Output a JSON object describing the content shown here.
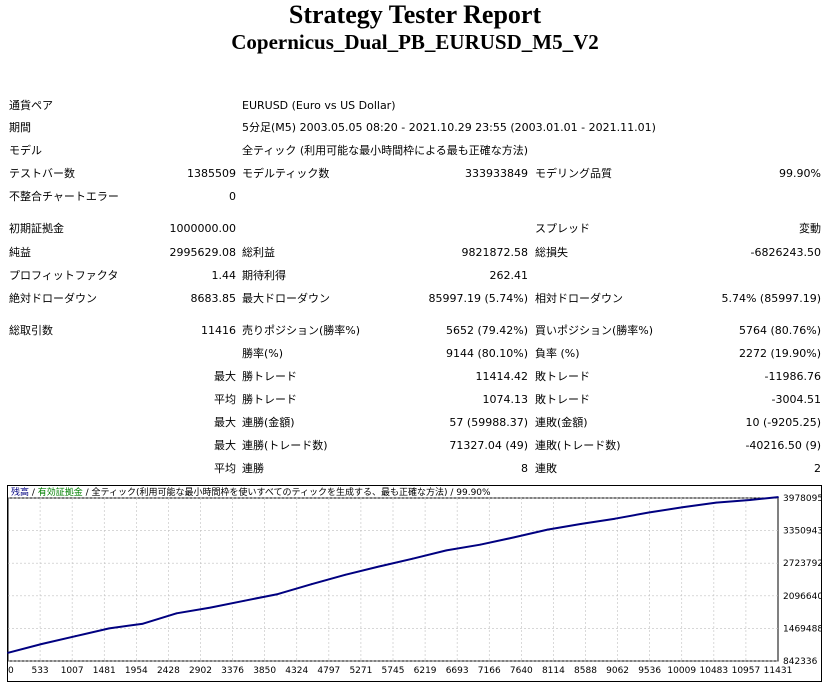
{
  "report": {
    "title": "Strategy Tester Report",
    "subtitle": "Copernicus_Dual_PB_EURUSD_M5_V2"
  },
  "summary": {
    "symbol_label": "通貨ペア",
    "symbol_value": "EURUSD (Euro vs US Dollar)",
    "period_label": "期間",
    "period_value": "5分足(M5) 2003.05.05 08:20 - 2021.10.29 23:55 (2003.01.01 - 2021.11.01)",
    "model_label": "モデル",
    "model_value": "全ティック (利用可能な最小時間枠による最も正確な方法)",
    "bars_label": "テストバー数",
    "bars_value": "1385509",
    "ticks_label": "モデルティック数",
    "ticks_value": "333933849",
    "quality_label": "モデリング品質",
    "quality_value": "99.90%",
    "mismatch_label": "不整合チャートエラー",
    "mismatch_value": "0"
  },
  "results": {
    "deposit_label": "初期証拠金",
    "deposit_value": "1000000.00",
    "spread_label": "スプレッド",
    "spread_value": "変動",
    "net_label": "純益",
    "net_value": "2995629.08",
    "gross_profit_label": "総利益",
    "gross_profit_value": "9821872.58",
    "gross_loss_label": "総損失",
    "gross_loss_value": "-6826243.50",
    "pf_label": "プロフィットファクタ",
    "pf_value": "1.44",
    "payoff_label": "期待利得",
    "payoff_value": "262.41",
    "abs_dd_label": "絶対ドローダウン",
    "abs_dd_value": "8683.85",
    "max_dd_label": "最大ドローダウン",
    "max_dd_value": "85997.19 (5.74%)",
    "rel_dd_label": "相対ドローダウン",
    "rel_dd_value": "5.74% (85997.19)"
  },
  "trades": {
    "total_label": "総取引数",
    "total_value": "11416",
    "short_label": "売りポジション(勝率%)",
    "short_value": "5652 (79.42%)",
    "long_label": "買いポジション(勝率%)",
    "long_value": "5764 (80.76%)",
    "win_rate_label": "勝率(%)",
    "win_rate_value": "9144 (80.10%)",
    "loss_rate_label": "負率 (%)",
    "loss_rate_value": "2272 (19.90%)",
    "max_prefix": "最大",
    "avg_prefix": "平均",
    "largest_win_label": "勝トレード",
    "largest_win_value": "11414.42",
    "largest_loss_label": "敗トレード",
    "largest_loss_value": "-11986.76",
    "avg_win_label": "勝トレード",
    "avg_win_value": "1074.13",
    "avg_loss_label": "敗トレード",
    "avg_loss_value": "-3004.51",
    "max_consec_wins_label": "連勝(金額)",
    "max_consec_wins_value": "57 (59988.37)",
    "max_consec_losses_label": "連敗(金額)",
    "max_consec_losses_value": "10 (-9205.25)",
    "max_consec_profit_label": "連勝(トレード数)",
    "max_consec_profit_value": "71327.04 (49)",
    "max_consec_loss_label": "連敗(トレード数)",
    "max_consec_loss_value": "-40216.50 (9)",
    "avg_consec_wins_label": "連勝",
    "avg_consec_wins_value": "8",
    "avg_consec_losses_label": "連敗",
    "avg_consec_losses_value": "2"
  },
  "chart_data": {
    "type": "line",
    "legend": [
      {
        "text": "残高",
        "color": "#000080"
      },
      {
        "text": " / ",
        "color": "#000000"
      },
      {
        "text": "有効証拠金",
        "color": "#008000"
      },
      {
        "text": " / 全ティック(利用可能な最小時間枠を使いすべてのティックを生成する、最も正確な方法) / 99.90%",
        "color": "#000000"
      }
    ],
    "x_ticks": [
      "0",
      "533",
      "1007",
      "1481",
      "1954",
      "2428",
      "2902",
      "3376",
      "3850",
      "4324",
      "4797",
      "5271",
      "5745",
      "6219",
      "6693",
      "7166",
      "7640",
      "8114",
      "8588",
      "9062",
      "9536",
      "10009",
      "10483",
      "10957",
      "11431"
    ],
    "y_ticks": [
      "3978095",
      "3350943",
      "2723792",
      "2096640",
      "1469488",
      "842336"
    ],
    "xlim": [
      0,
      11416
    ],
    "ylim": [
      842336,
      3978095
    ],
    "series": [
      {
        "color": "#000080",
        "x": [
          0,
          500,
          1000,
          1500,
          2000,
          2500,
          3000,
          3500,
          4000,
          4500,
          5000,
          5500,
          6000,
          6500,
          7000,
          7500,
          8000,
          8500,
          9000,
          9500,
          10000,
          10500,
          11000,
          11416
        ],
        "y": [
          1000000,
          1170000,
          1320000,
          1470000,
          1560000,
          1760000,
          1870000,
          2000000,
          2130000,
          2320000,
          2500000,
          2660000,
          2810000,
          2970000,
          3080000,
          3220000,
          3370000,
          3480000,
          3580000,
          3700000,
          3800000,
          3890000,
          3940000,
          3995629
        ]
      }
    ],
    "grid": true
  }
}
